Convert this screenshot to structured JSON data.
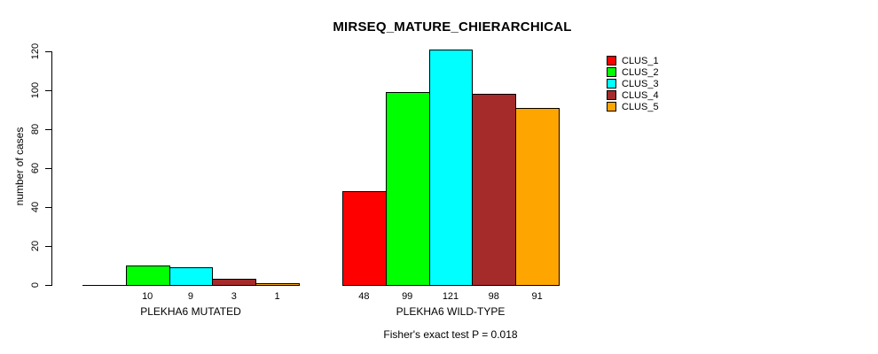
{
  "chart_data": {
    "type": "bar",
    "title": "MIRSEQ_MATURE_CHIERARCHICAL",
    "ylabel": "number of cases",
    "xlabel": "",
    "ylim": [
      0,
      120
    ],
    "yticks": [
      0,
      20,
      40,
      60,
      80,
      100,
      120
    ],
    "grid": false,
    "legend_position": "right",
    "series": [
      {
        "name": "CLUS_1",
        "color": "#FF0000"
      },
      {
        "name": "CLUS_2",
        "color": "#00FF00"
      },
      {
        "name": "CLUS_3",
        "color": "#00FFFF"
      },
      {
        "name": "CLUS_4",
        "color": "#A52A2A"
      },
      {
        "name": "CLUS_5",
        "color": "#FFA500"
      }
    ],
    "groups": [
      {
        "label": "PLEKHA6 MUTATED",
        "values": [
          0,
          10,
          9,
          3,
          1
        ],
        "bar_labels": [
          "",
          "10",
          "9",
          "3",
          "1"
        ]
      },
      {
        "label": "PLEKHA6 WILD-TYPE",
        "values": [
          48,
          99,
          121,
          98,
          91
        ],
        "bar_labels": [
          "48",
          "99",
          "121",
          "98",
          "91"
        ]
      }
    ],
    "annotation": "Fisher's exact test P = 0.018"
  },
  "colors": {
    "background": "#FFFFFF",
    "axis": "#000000",
    "text": "#000000"
  }
}
